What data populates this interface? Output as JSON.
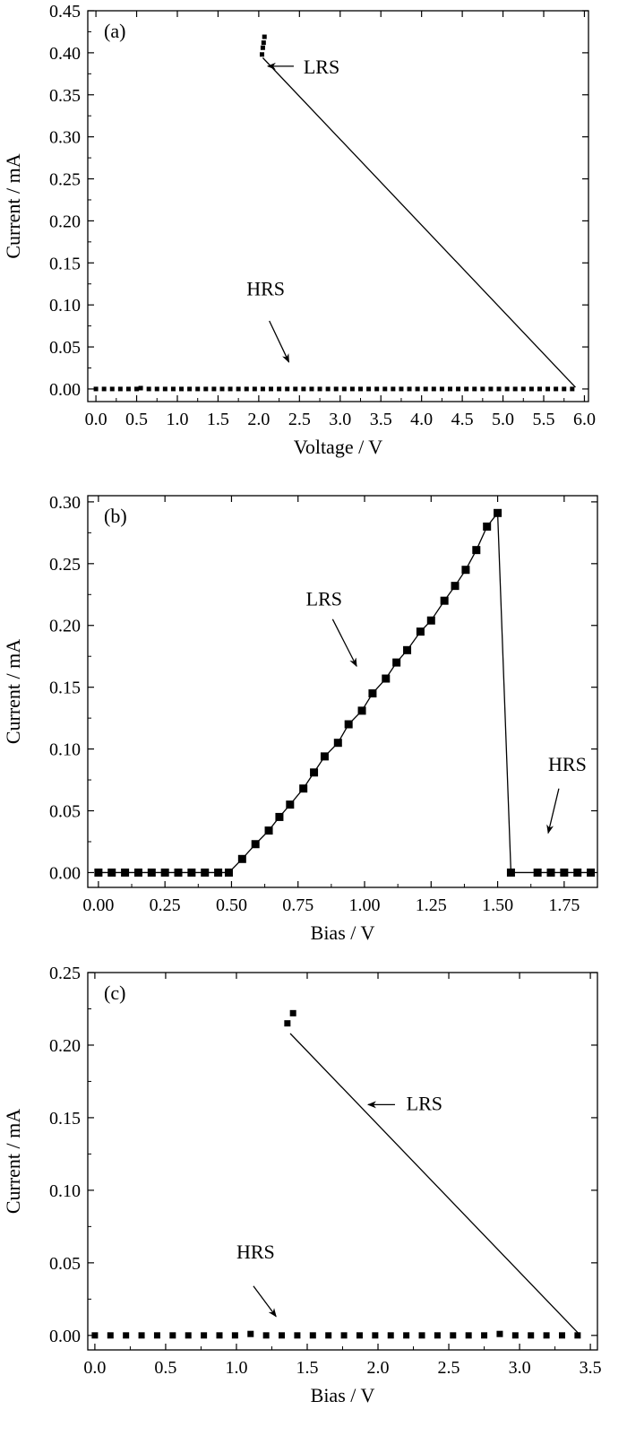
{
  "chart_data": [
    {
      "type": "scatter",
      "panel_label": "(a)",
      "xlabel": "Voltage / V",
      "ylabel": "Current / mA",
      "xlim": [
        -0.1,
        6.05
      ],
      "ylim": [
        -0.015,
        0.45
      ],
      "xticks": [
        0.0,
        0.5,
        1.0,
        1.5,
        2.0,
        2.5,
        3.0,
        3.5,
        4.0,
        4.5,
        5.0,
        5.5,
        6.0
      ],
      "xtick_labels": [
        "0.0",
        "0.5",
        "1.0",
        "1.5",
        "2.0",
        "2.5",
        "3.0",
        "3.5",
        "4.0",
        "4.5",
        "5.0",
        "5.5",
        "6.0"
      ],
      "yticks": [
        0.0,
        0.05,
        0.1,
        0.15,
        0.2,
        0.25,
        0.3,
        0.35,
        0.4,
        0.45
      ],
      "ytick_labels": [
        "0.00",
        "0.05",
        "0.10",
        "0.15",
        "0.20",
        "0.25",
        "0.30",
        "0.35",
        "0.40",
        "0.45"
      ],
      "marker_size": 5,
      "series": [
        {
          "x": [
            0.0,
            0.1,
            0.2,
            0.3,
            0.4,
            0.5,
            0.55,
            0.65,
            0.75,
            0.85,
            0.95,
            1.05,
            1.15,
            1.25,
            1.35,
            1.45,
            1.55,
            1.65,
            1.75,
            1.85,
            1.95,
            2.05,
            2.15,
            2.25,
            2.35,
            2.45,
            2.55,
            2.65,
            2.75,
            2.85,
            2.95,
            3.05,
            3.15,
            3.25,
            3.35,
            3.45,
            3.55,
            3.65,
            3.75,
            3.85,
            3.95,
            4.05,
            4.15,
            4.25,
            4.35,
            4.45,
            4.55,
            4.65,
            4.75,
            4.85,
            4.95,
            5.05,
            5.15,
            5.25,
            5.35,
            5.45,
            5.55,
            5.65,
            5.75,
            5.85
          ],
          "y": [
            0.0,
            0.0,
            0.0,
            0.0,
            0.0,
            0.0,
            0.001,
            0.0,
            0.0,
            0.0,
            0.0,
            0.0,
            0.0,
            0.0,
            0.0,
            0.0,
            0.0,
            0.0,
            0.0,
            0.0,
            0.0,
            0.0,
            0.0,
            0.0,
            0.0,
            0.0,
            0.0,
            0.0,
            0.0,
            0.0,
            0.0,
            0.0,
            0.0,
            0.0,
            0.0,
            0.0,
            0.0,
            0.0,
            0.0,
            0.0,
            0.0,
            0.0,
            0.0,
            0.0,
            0.0,
            0.0,
            0.0,
            0.0,
            0.0,
            0.0,
            0.0,
            0.0,
            0.0,
            0.0,
            0.0,
            0.0,
            0.0,
            0.0,
            0.0,
            0.0
          ]
        },
        {
          "x": [
            2.04,
            2.05,
            2.06,
            2.07
          ],
          "y": [
            0.398,
            0.406,
            0.412,
            0.419
          ]
        }
      ],
      "lines": [
        {
          "x": [
            2.05,
            5.89
          ],
          "y": [
            0.394,
            0.002
          ]
        }
      ],
      "annotations": [
        {
          "text": "LRS",
          "x": 2.55,
          "y": 0.384,
          "arrow_from": [
            2.43,
            0.384
          ],
          "arrow_to": [
            2.11,
            0.384
          ]
        },
        {
          "text": "HRS",
          "x": 1.85,
          "y": 0.12,
          "arrow_from": [
            2.13,
            0.081
          ],
          "arrow_to": [
            2.37,
            0.032
          ]
        }
      ]
    },
    {
      "type": "line",
      "panel_label": "(b)",
      "xlabel": "Bias / V",
      "ylabel": "Current / mA",
      "xlim": [
        -0.04,
        1.875
      ],
      "ylim": [
        -0.012,
        0.305
      ],
      "xticks": [
        0.0,
        0.25,
        0.5,
        0.75,
        1.0,
        1.25,
        1.5,
        1.75
      ],
      "xtick_labels": [
        "0.00",
        "0.25",
        "0.50",
        "0.75",
        "1.00",
        "1.25",
        "1.50",
        "1.75"
      ],
      "yticks": [
        0.0,
        0.05,
        0.1,
        0.15,
        0.2,
        0.25,
        0.3
      ],
      "ytick_labels": [
        "0.00",
        "0.05",
        "0.10",
        "0.15",
        "0.20",
        "0.25",
        "0.30"
      ],
      "marker_size": 9,
      "series": [
        {
          "x": [
            0.0,
            0.05,
            0.1,
            0.15,
            0.2,
            0.25,
            0.3,
            0.35,
            0.4,
            0.45,
            0.49,
            0.54,
            0.59,
            0.64,
            0.68,
            0.72,
            0.77,
            0.81,
            0.85,
            0.9,
            0.94,
            0.99,
            1.03,
            1.08,
            1.12,
            1.16,
            1.21,
            1.25,
            1.3,
            1.34,
            1.38,
            1.42,
            1.46,
            1.5,
            1.55,
            1.65,
            1.7,
            1.75,
            1.8,
            1.85
          ],
          "y": [
            0.0,
            0.0,
            0.0,
            0.0,
            0.0,
            0.0,
            0.0,
            0.0,
            0.0,
            0.0,
            0.0,
            0.011,
            0.023,
            0.034,
            0.045,
            0.055,
            0.068,
            0.081,
            0.094,
            0.105,
            0.12,
            0.131,
            0.145,
            0.157,
            0.17,
            0.18,
            0.195,
            0.204,
            0.22,
            0.232,
            0.245,
            0.261,
            0.28,
            0.291,
            0.0,
            0.0,
            0.0,
            0.0,
            0.0,
            0.0
          ]
        }
      ],
      "line_connects": [
        0,
        39
      ],
      "annotations": [
        {
          "text": "LRS",
          "x": 0.78,
          "y": 0.222,
          "arrow_from": [
            0.88,
            0.205
          ],
          "arrow_to": [
            0.97,
            0.167
          ]
        },
        {
          "text": "HRS",
          "x": 1.69,
          "y": 0.088,
          "arrow_from": [
            1.73,
            0.068
          ],
          "arrow_to": [
            1.69,
            0.032
          ]
        }
      ]
    },
    {
      "type": "scatter",
      "panel_label": "(c)",
      "xlabel": "Bias / V",
      "ylabel": "Current / mA",
      "xlim": [
        -0.05,
        3.55
      ],
      "ylim": [
        -0.01,
        0.25
      ],
      "xticks": [
        0.0,
        0.5,
        1.0,
        1.5,
        2.0,
        2.5,
        3.0,
        3.5
      ],
      "xtick_labels": [
        "0.0",
        "0.5",
        "1.0",
        "1.5",
        "2.0",
        "2.5",
        "3.0",
        "3.5"
      ],
      "yticks": [
        0.0,
        0.05,
        0.1,
        0.15,
        0.2,
        0.25
      ],
      "ytick_labels": [
        "0.00",
        "0.05",
        "0.10",
        "0.15",
        "0.20",
        "0.25"
      ],
      "marker_size": 7,
      "series": [
        {
          "x": [
            0.0,
            0.11,
            0.22,
            0.33,
            0.44,
            0.55,
            0.66,
            0.77,
            0.88,
            0.99,
            1.1,
            1.21,
            1.32,
            1.43,
            1.54,
            1.65,
            1.76,
            1.87,
            1.98,
            2.09,
            2.2,
            2.31,
            2.42,
            2.53,
            2.64,
            2.75,
            2.86,
            2.97,
            3.08,
            3.19,
            3.3,
            3.41
          ],
          "y": [
            0.0,
            0.0,
            0.0,
            0.0,
            0.0,
            0.0,
            0.0,
            0.0,
            0.0,
            0.0,
            0.001,
            0.0,
            0.0,
            0.0,
            0.0,
            0.0,
            0.0,
            0.0,
            0.0,
            0.0,
            0.0,
            0.0,
            0.0,
            0.0,
            0.0,
            0.0,
            0.001,
            0.0,
            0.0,
            0.0,
            0.0,
            0.0
          ]
        },
        {
          "x": [
            1.36,
            1.4
          ],
          "y": [
            0.215,
            0.222
          ]
        }
      ],
      "lines": [
        {
          "x": [
            1.38,
            3.42
          ],
          "y": [
            0.208,
            0.001
          ]
        }
      ],
      "annotations": [
        {
          "text": "LRS",
          "x": 2.2,
          "y": 0.16,
          "arrow_from": [
            2.12,
            0.159
          ],
          "arrow_to": [
            1.93,
            0.159
          ]
        },
        {
          "text": "HRS",
          "x": 1.0,
          "y": 0.058,
          "arrow_from": [
            1.12,
            0.034
          ],
          "arrow_to": [
            1.28,
            0.013
          ]
        }
      ]
    }
  ]
}
